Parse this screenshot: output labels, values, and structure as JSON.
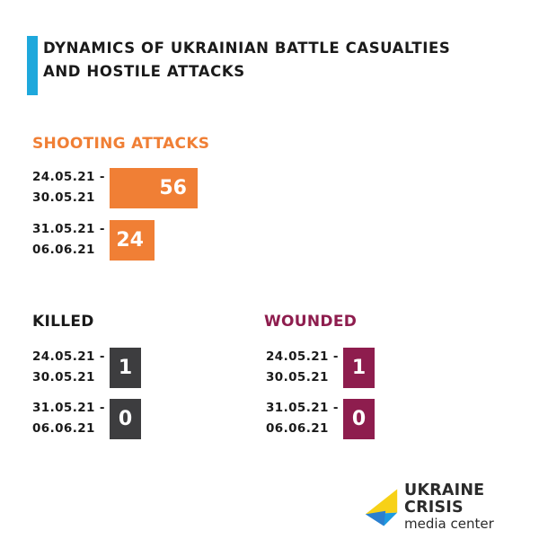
{
  "title": {
    "line1": "DYNAMICS OF UKRAINIAN BATTLE CASUALTIES",
    "line2": "AND HOSTILE ATTACKS"
  },
  "colors": {
    "accent": "#1ea8dc",
    "shooting": "#f07f35",
    "killed": "#3d3d3f",
    "wounded": "#8e1d4e"
  },
  "chart_data": [
    {
      "type": "bar",
      "title": "SHOOTING ATTACKS",
      "categories": [
        [
          "24.05.21 -",
          "30.05.21"
        ],
        [
          "31.05.21 -",
          "06.06.21"
        ]
      ],
      "values": [
        56,
        24
      ]
    },
    {
      "type": "bar",
      "title": "KILLED",
      "categories": [
        [
          "24.05.21 -",
          "30.05.21"
        ],
        [
          "31.05.21 -",
          "06.06.21"
        ]
      ],
      "values": [
        1,
        0
      ]
    },
    {
      "type": "bar",
      "title": "WOUNDED",
      "categories": [
        [
          "24.05.21 -",
          "30.05.21"
        ],
        [
          "31.05.21 -",
          "06.06.21"
        ]
      ],
      "values": [
        1,
        0
      ]
    }
  ],
  "logo": {
    "line1": "UKRAINE CRISIS",
    "line2": "media center",
    "icon": "ukraine-crisis-logo-icon"
  }
}
